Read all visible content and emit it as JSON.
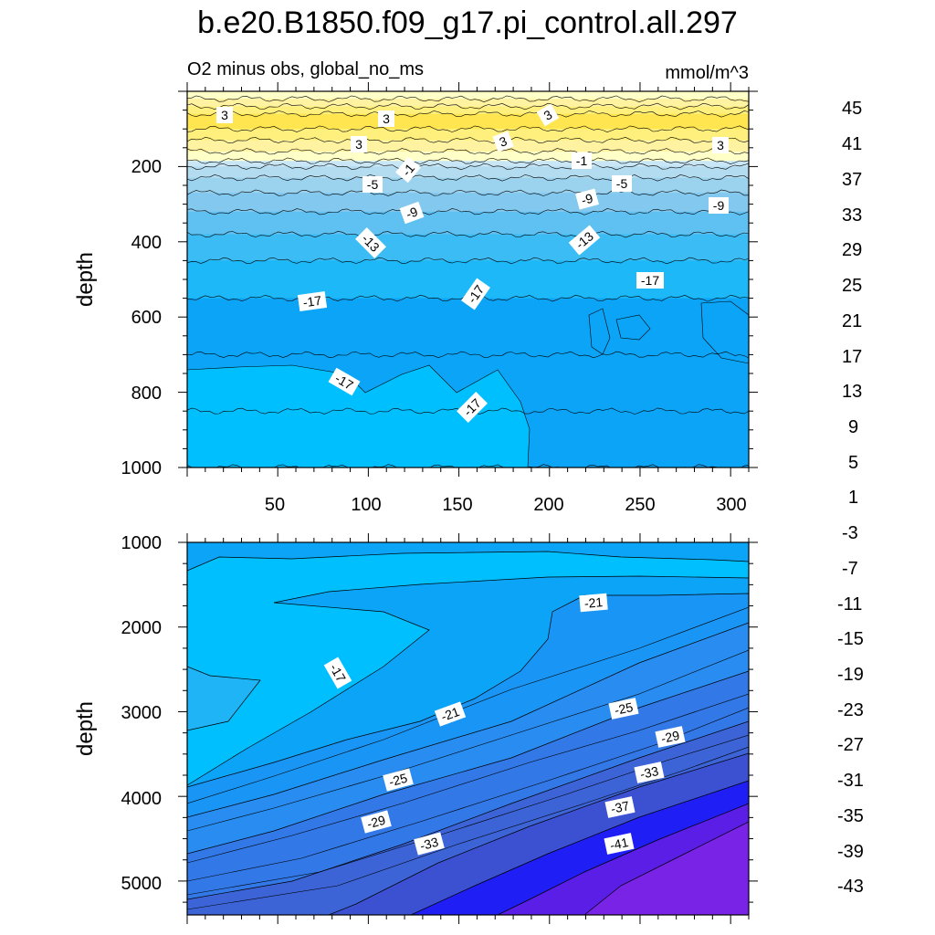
{
  "chart_data": {
    "type": "contour",
    "title": "b.e20.B1850.f09_g17.pi_control.all.297",
    "subtitle": "O2 minus obs, global_no_ms",
    "units": "mmol/m^3",
    "ylabel": "depth",
    "colorbar": {
      "labels": [
        "45",
        "41",
        "37",
        "33",
        "29",
        "25",
        "21",
        "17",
        "13",
        "9",
        "5",
        "1",
        "-3",
        "-7",
        "-11",
        "-15",
        "-19",
        "-23",
        "-27",
        "-31",
        "-35",
        "-39",
        "-43"
      ],
      "colors": [
        "#ffb4b4",
        "#f08080",
        "#e05050",
        "#d22323",
        "#e10000",
        "#ff1e1e",
        "#ff3214",
        "#ff5014",
        "#ff6e00",
        "#ff8c00",
        "#ffa500",
        "#ffc31e",
        "#ffdc3c",
        "#ffe650",
        "#fff07d",
        "#ffffc8",
        "#c8e6f5",
        "#b4dcf0",
        "#9bd2ee",
        "#82c8ef",
        "#5fc0f2",
        "#3cbcf4",
        "#00bfff",
        "#0ba4f7",
        "#1996f5",
        "#288cf0",
        "#3278e6",
        "#3c64d7",
        "#3c50d2",
        "#2d32e6",
        "#1e1ef5",
        "#0a0aff",
        "#3c1ee6",
        "#5a1ee6",
        "#7823e6"
      ]
    },
    "top_panel": {
      "xlim": [
        0,
        310
      ],
      "xticks": [
        "50",
        "100",
        "150",
        "200",
        "250",
        "300"
      ],
      "ylim": [
        0,
        1000
      ],
      "yticks": [
        "200",
        "400",
        "600",
        "800",
        "1000"
      ],
      "bands": [
        {
          "depth": 20,
          "value": 1
        },
        {
          "depth": 40,
          "value": 2
        },
        {
          "depth": 60,
          "value": 3
        },
        {
          "depth": 100,
          "value": 4
        },
        {
          "depth": 130,
          "value": 3
        },
        {
          "depth": 160,
          "value": 2
        },
        {
          "depth": 185,
          "value": 1
        },
        {
          "depth": 200,
          "value": -1
        },
        {
          "depth": 230,
          "value": -3
        },
        {
          "depth": 270,
          "value": -6
        },
        {
          "depth": 320,
          "value": -9
        },
        {
          "depth": 380,
          "value": -12
        },
        {
          "depth": 450,
          "value": -14
        },
        {
          "depth": 550,
          "value": -16
        },
        {
          "depth": 700,
          "value": -17
        },
        {
          "depth": 850,
          "value": -17
        },
        {
          "depth": 1000,
          "value": -17
        }
      ],
      "contour_labels": [
        "3",
        "3",
        "3",
        "3",
        "3",
        "3",
        "-1",
        "-1",
        "-5",
        "-5",
        "-9",
        "-9",
        "-9",
        "-13",
        "-13",
        "-17",
        "-17",
        "-17",
        "-17",
        "-17"
      ]
    },
    "bottom_panel": {
      "xlim": [
        0,
        310
      ],
      "ylim": [
        1000,
        5400
      ],
      "yticks": [
        "1000",
        "2000",
        "3000",
        "4000",
        "5000"
      ],
      "contour_labels": [
        "-21",
        "-17",
        "-21",
        "-25",
        "-25",
        "-29",
        "-29",
        "-33",
        "-33",
        "-37",
        "-41"
      ]
    }
  }
}
